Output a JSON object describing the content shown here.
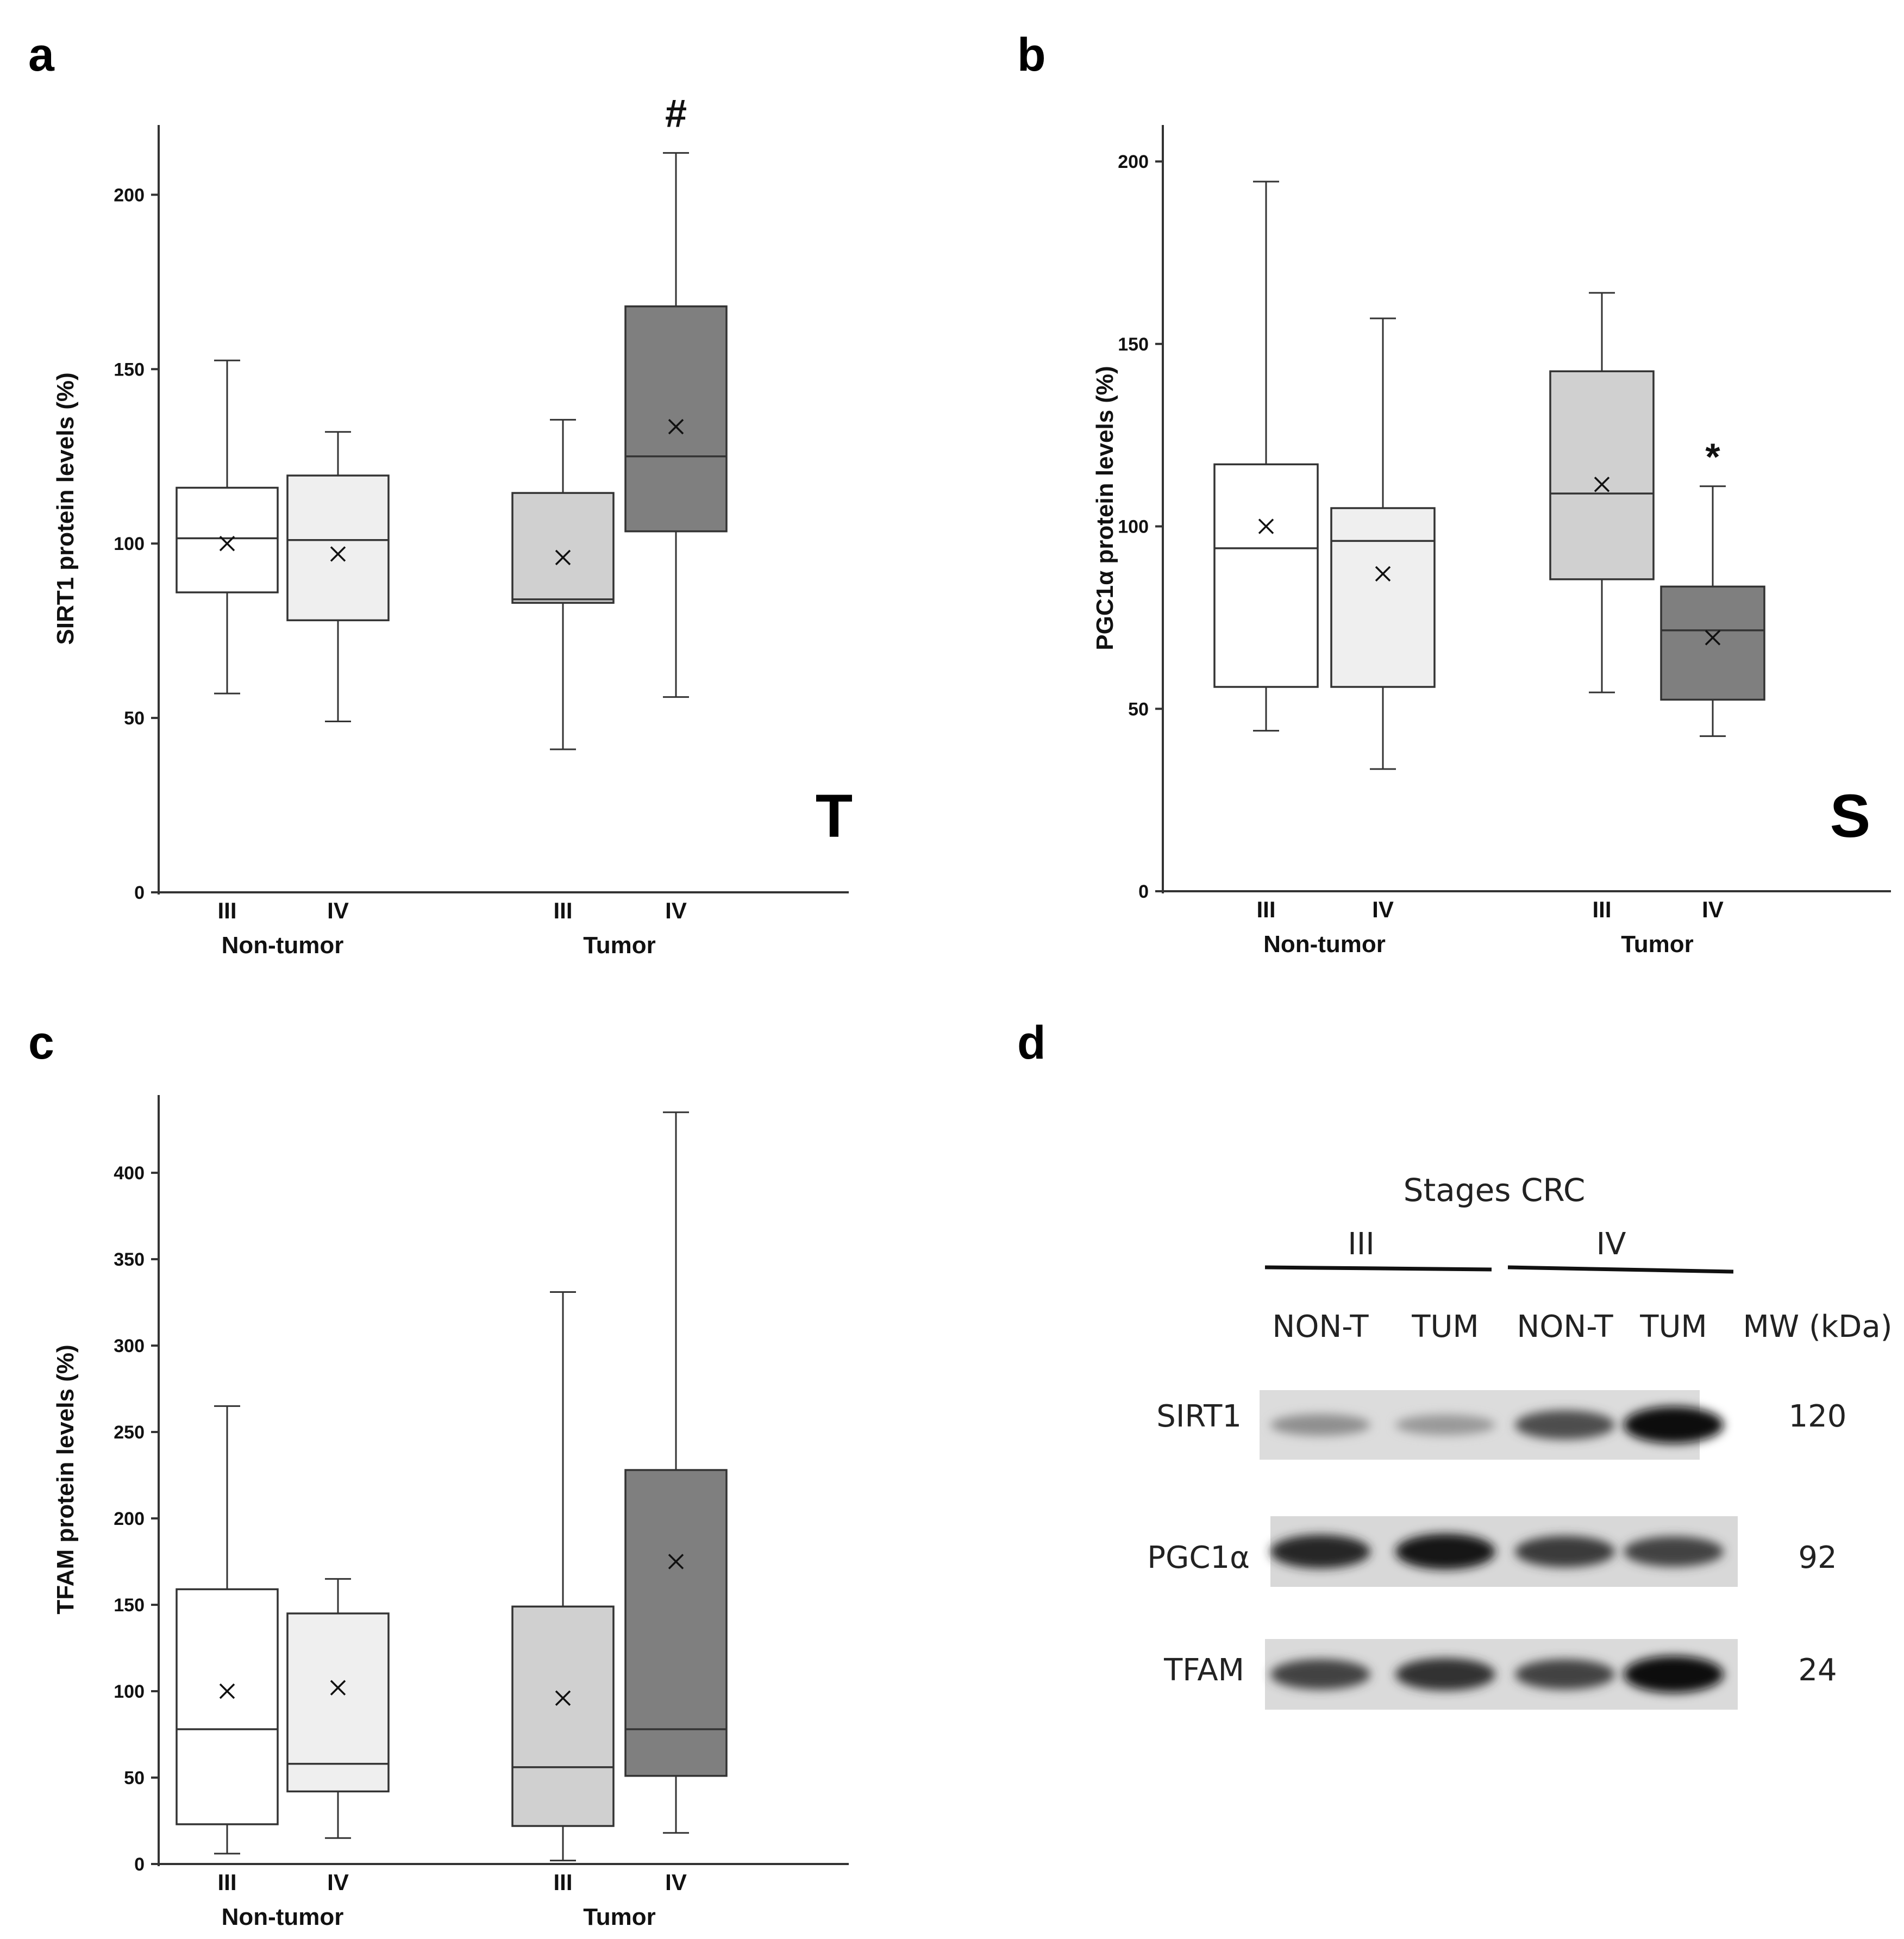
{
  "chart_data": [
    {
      "panel": "a",
      "type": "boxplot",
      "ylabel": "SIRT1 protein levels (%)",
      "ylim": [
        0,
        220
      ],
      "yticks": [
        0,
        50,
        100,
        150,
        200
      ],
      "groups": [
        {
          "label": "Non-tumor",
          "categories": [
            "III",
            "IV"
          ]
        },
        {
          "label": "Tumor",
          "categories": [
            "III",
            "IV"
          ]
        }
      ],
      "boxes": [
        {
          "group": "Non-tumor",
          "category": "III",
          "fill": "#ffffff",
          "min": 57,
          "q1": 86,
          "median": 101.5,
          "q3": 116,
          "max": 152.5,
          "mean": 100
        },
        {
          "group": "Non-tumor",
          "category": "IV",
          "fill": "#efefef",
          "min": 49,
          "q1": 78,
          "median": 101,
          "q3": 119.5,
          "max": 132,
          "mean": 97
        },
        {
          "group": "Tumor",
          "category": "III",
          "fill": "#d0d0d0",
          "min": 41,
          "q1": 83,
          "median": 84,
          "q3": 114.5,
          "max": 135.5,
          "mean": 96
        },
        {
          "group": "Tumor",
          "category": "IV",
          "fill": "#7f7f7f",
          "min": 56,
          "q1": 103.5,
          "median": 125,
          "q3": 168,
          "max": 212,
          "mean": 133.5,
          "annotation": "#"
        }
      ],
      "corner_letter": "T"
    },
    {
      "panel": "b",
      "type": "boxplot",
      "ylabel": "PGC1α protein levels (%)",
      "ylim": [
        0,
        210
      ],
      "yticks": [
        0,
        50,
        100,
        150,
        200
      ],
      "groups": [
        {
          "label": "Non-tumor",
          "categories": [
            "III",
            "IV"
          ]
        },
        {
          "label": "Tumor",
          "categories": [
            "III",
            "IV"
          ]
        }
      ],
      "boxes": [
        {
          "group": "Non-tumor",
          "category": "III",
          "fill": "#ffffff",
          "min": 44,
          "q1": 56,
          "median": 94,
          "q3": 117,
          "max": 194.5,
          "mean": 100
        },
        {
          "group": "Non-tumor",
          "category": "IV",
          "fill": "#efefef",
          "min": 33.5,
          "q1": 56,
          "median": 96,
          "q3": 105,
          "max": 157,
          "mean": 87
        },
        {
          "group": "Tumor",
          "category": "III",
          "fill": "#d0d0d0",
          "min": 54.5,
          "q1": 85.5,
          "median": 109,
          "q3": 142.5,
          "max": 164,
          "mean": 111.5
        },
        {
          "group": "Tumor",
          "category": "IV",
          "fill": "#7f7f7f",
          "min": 42.5,
          "q1": 52.5,
          "median": 71.5,
          "q3": 83.5,
          "max": 111,
          "mean": 69.5,
          "annotation": "*"
        }
      ],
      "corner_letter": "S"
    },
    {
      "panel": "c",
      "type": "boxplot",
      "ylabel": "TFAM protein levels (%)",
      "ylim": [
        0,
        445
      ],
      "yticks": [
        0,
        50,
        100,
        150,
        200,
        250,
        300,
        350,
        400
      ],
      "groups": [
        {
          "label": "Non-tumor",
          "categories": [
            "III",
            "IV"
          ]
        },
        {
          "label": "Tumor",
          "categories": [
            "III",
            "IV"
          ]
        }
      ],
      "boxes": [
        {
          "group": "Non-tumor",
          "category": "III",
          "fill": "#ffffff",
          "min": 6,
          "q1": 23,
          "median": 78,
          "q3": 159,
          "max": 265,
          "mean": 100
        },
        {
          "group": "Non-tumor",
          "category": "IV",
          "fill": "#efefef",
          "min": 15,
          "q1": 42,
          "median": 58,
          "q3": 145,
          "max": 165,
          "mean": 102
        },
        {
          "group": "Tumor",
          "category": "III",
          "fill": "#d0d0d0",
          "min": 2,
          "q1": 22,
          "median": 56,
          "q3": 149,
          "max": 331,
          "mean": 96
        },
        {
          "group": "Tumor",
          "category": "IV",
          "fill": "#7f7f7f",
          "min": 18,
          "q1": 51,
          "median": 78,
          "q3": 228,
          "max": 435,
          "mean": 175
        }
      ]
    }
  ],
  "panel_labels": [
    "a",
    "b",
    "c",
    "d"
  ],
  "blot": {
    "title": "Stages  CRC",
    "stage_iii": "III",
    "stage_iv": "IV",
    "lanes": [
      "NON-T",
      "TUM",
      "NON-T",
      "TUM"
    ],
    "mw_header": "MW (kDa)",
    "proteins": [
      {
        "name": "SIRT1",
        "mw": "120",
        "intensity": [
          0.3,
          0.25,
          0.65,
          1.0
        ]
      },
      {
        "name": "PGC1α",
        "mw": "92",
        "intensity": [
          0.85,
          0.95,
          0.75,
          0.7
        ]
      },
      {
        "name": "TFAM",
        "mw": "24",
        "intensity": [
          0.7,
          0.8,
          0.7,
          1.0
        ]
      }
    ]
  }
}
